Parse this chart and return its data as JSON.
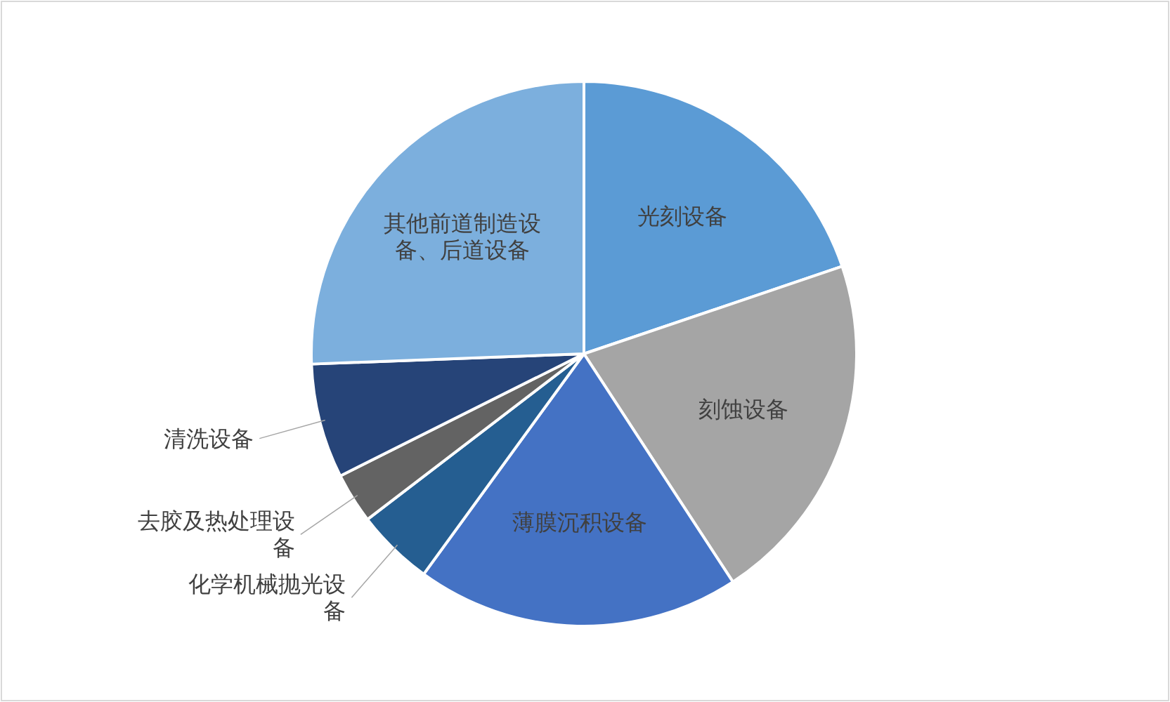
{
  "chart_data": {
    "type": "pie",
    "categories": [
      "光刻设备",
      "刻蚀设备",
      "薄膜沉积设备",
      "化学机械抛光设备",
      "去胶及热处理设备",
      "清洗设备",
      "其他前道制造设备、后道设备"
    ],
    "values": [
      19.8,
      21.0,
      19.2,
      4.6,
      3.0,
      6.8,
      25.6
    ],
    "colors": [
      "#5b9bd5",
      "#a5a5a5",
      "#4472c4",
      "#255e91",
      "#636363",
      "#264478",
      "#7cafdd"
    ]
  }
}
